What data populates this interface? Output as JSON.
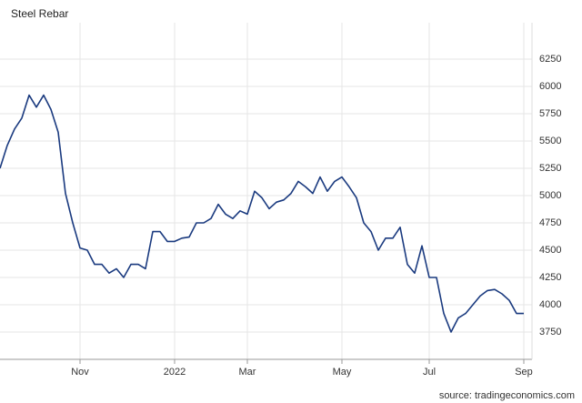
{
  "chart_data": {
    "type": "line",
    "title": "Steel Rebar",
    "source": "source: tradingeconomics.com",
    "categories": [
      null,
      null,
      null,
      null,
      null,
      null,
      null,
      null,
      null,
      null,
      null,
      "Nov",
      null,
      null,
      null,
      null,
      null,
      null,
      null,
      null,
      null,
      null,
      null,
      null,
      "2022",
      null,
      null,
      null,
      null,
      null,
      null,
      null,
      null,
      null,
      "Mar",
      null,
      null,
      null,
      null,
      null,
      null,
      null,
      null,
      null,
      null,
      null,
      null,
      "May",
      null,
      null,
      null,
      null,
      null,
      null,
      null,
      null,
      null,
      null,
      null,
      "Jul",
      null,
      null,
      null,
      null,
      null,
      null,
      null,
      null,
      null,
      null,
      null,
      null,
      "Sep"
    ],
    "values": [
      5250,
      5460,
      5610,
      5710,
      5920,
      5810,
      5920,
      5790,
      5580,
      5020,
      4750,
      4520,
      4500,
      4370,
      4370,
      4290,
      4330,
      4250,
      4370,
      4370,
      4330,
      4670,
      4670,
      4580,
      4580,
      4610,
      4620,
      4750,
      4750,
      4790,
      4920,
      4830,
      4790,
      4860,
      4830,
      5040,
      4980,
      4880,
      4940,
      4960,
      5020,
      5130,
      5080,
      5020,
      5170,
      5040,
      5130,
      5170,
      5080,
      4980,
      4750,
      4670,
      4500,
      4610,
      4610,
      4710,
      4370,
      4290,
      4540,
      4250,
      4250,
      3920,
      3750,
      3880,
      3920,
      4000,
      4080,
      4130,
      4140,
      4100,
      4040,
      3920,
      3920
    ],
    "color": "#1a3a7f",
    "ylim": [
      3500,
      6500
    ],
    "yticks": [
      3750,
      4000,
      4250,
      4500,
      4750,
      5000,
      5250,
      5500,
      5750,
      6000,
      6250
    ],
    "grid": true
  }
}
